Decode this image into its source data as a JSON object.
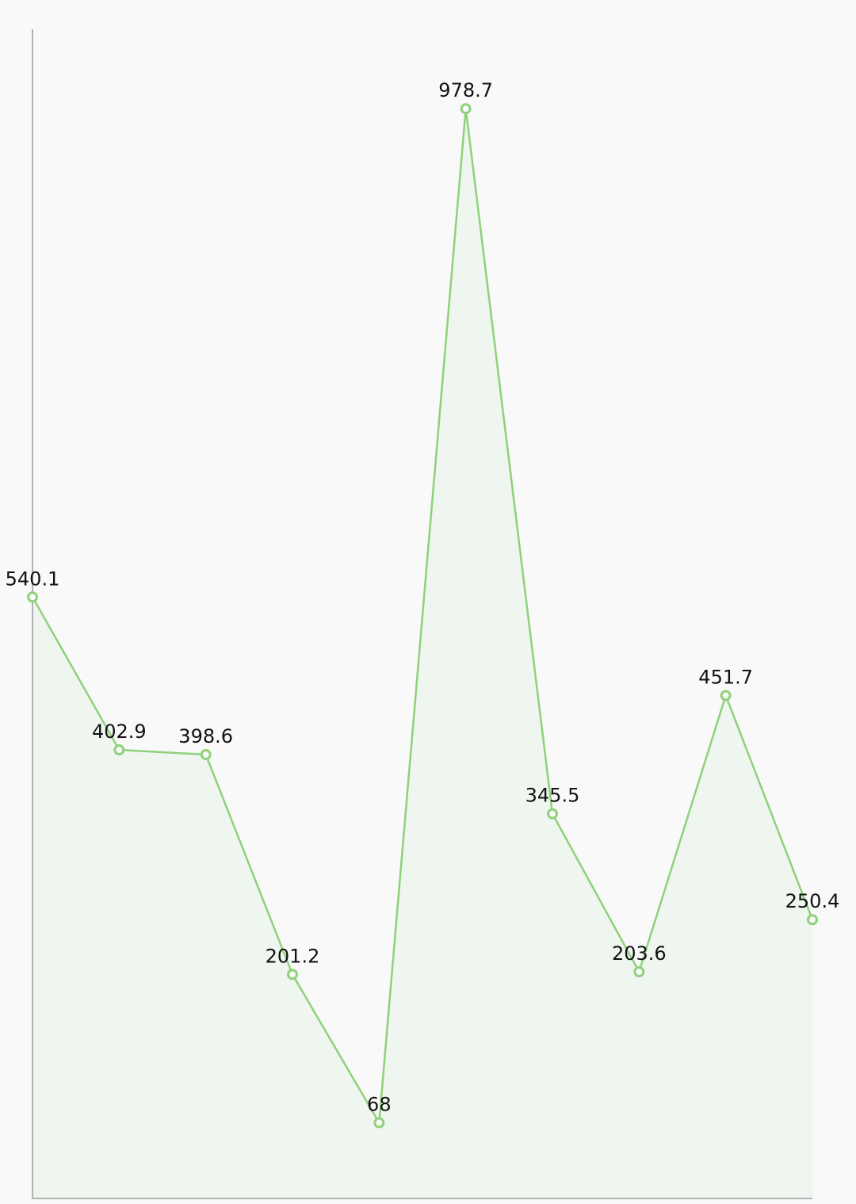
{
  "chart_data": {
    "type": "area",
    "title": "",
    "xlabel": "",
    "ylabel": "",
    "x": [
      1,
      2,
      3,
      4,
      5,
      6,
      7,
      8,
      9,
      10
    ],
    "ylim": [
      0,
      1050
    ],
    "grid": false,
    "legend": "none",
    "series": [
      {
        "values": [
          540.1,
          402.9,
          398.6,
          201.2,
          68,
          978.7,
          345.5,
          203.6,
          451.7,
          250.4
        ],
        "labels": [
          "540.1",
          "402.9",
          "398.6",
          "201.2",
          "68",
          "978.7",
          "345.5",
          "203.6",
          "451.7",
          "250.4"
        ]
      }
    ]
  },
  "colors": {
    "line": "#8fd17a",
    "area": "#eff6f0",
    "axis": "#9a9a9a",
    "background": "#f9f9f9"
  }
}
